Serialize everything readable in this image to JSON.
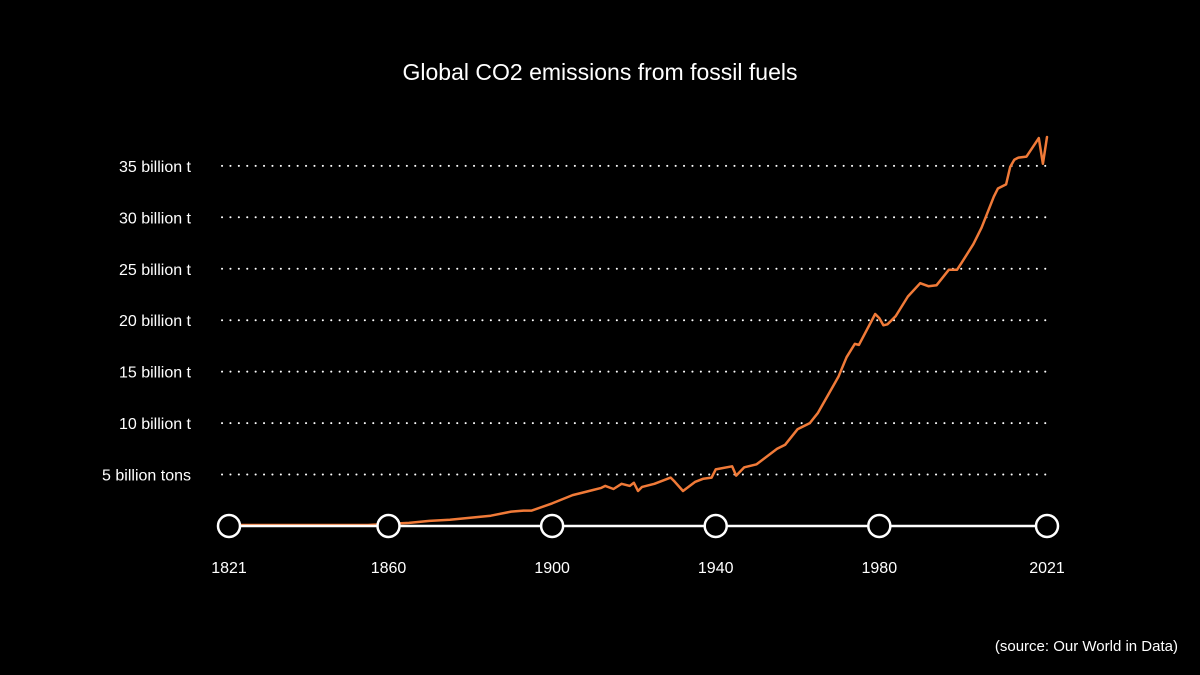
{
  "colors": {
    "background": "#000000",
    "text": "#ffffff",
    "series": "#f07a38"
  },
  "chart_data": {
    "type": "line",
    "title": "Global CO2 emissions from fossil fuels",
    "source": "(source: Our World in Data)",
    "xlabel": "",
    "ylabel": "",
    "xlim": [
      1821,
      2021
    ],
    "ylim": [
      0,
      40
    ],
    "x_ticks": [
      {
        "value": 1821,
        "label": "1821"
      },
      {
        "value": 1860,
        "label": "1860"
      },
      {
        "value": 1900,
        "label": "1900"
      },
      {
        "value": 1940,
        "label": "1940"
      },
      {
        "value": 1980,
        "label": "1980"
      },
      {
        "value": 2021,
        "label": "2021"
      }
    ],
    "y_ticks": [
      {
        "value": 5,
        "label": "5 billion tons"
      },
      {
        "value": 10,
        "label": "10 billion t"
      },
      {
        "value": 15,
        "label": "15 billion t"
      },
      {
        "value": 20,
        "label": "20 billion t"
      },
      {
        "value": 25,
        "label": "25 billion t"
      },
      {
        "value": 30,
        "label": "30 billion t"
      },
      {
        "value": 35,
        "label": "35 billion t"
      }
    ],
    "grid": true,
    "legend": "none",
    "series": [
      {
        "x": [
          1821,
          1830,
          1840,
          1850,
          1855,
          1860,
          1865,
          1870,
          1875,
          1880,
          1885,
          1890,
          1893,
          1895,
          1900,
          1905,
          1907,
          1910,
          1912,
          1913,
          1915,
          1917,
          1919,
          1920,
          1921,
          1922,
          1925,
          1929,
          1930,
          1932,
          1935,
          1937,
          1939,
          1940,
          1944,
          1945,
          1947,
          1949,
          1950,
          1955,
          1957,
          1960,
          1963,
          1965,
          1970,
          1972,
          1974,
          1975,
          1979,
          1980,
          1981,
          1982,
          1984,
          1987,
          1990,
          1992,
          1994,
          1997,
          1999,
          2000,
          2003,
          2005,
          2008,
          2009,
          2011,
          2012,
          2013,
          2014,
          2016,
          2019,
          2020,
          2021
        ],
        "values": [
          0.1,
          0.1,
          0.1,
          0.1,
          0.1,
          0.2,
          0.3,
          0.5,
          0.6,
          0.8,
          1.0,
          1.4,
          1.5,
          1.5,
          2.2,
          3.0,
          3.2,
          3.5,
          3.7,
          3.9,
          3.6,
          4.1,
          3.9,
          4.2,
          3.4,
          3.8,
          4.1,
          4.7,
          4.3,
          3.4,
          4.3,
          4.6,
          4.7,
          5.5,
          5.8,
          4.9,
          5.7,
          5.9,
          6.0,
          7.5,
          7.9,
          9.4,
          10.0,
          11.0,
          14.5,
          16.4,
          17.7,
          17.6,
          20.6,
          20.2,
          19.5,
          19.6,
          20.4,
          22.3,
          23.6,
          23.3,
          23.4,
          24.9,
          24.9,
          25.5,
          27.4,
          29.0,
          32.0,
          32.8,
          33.2,
          34.9,
          35.6,
          35.8,
          35.9,
          37.7,
          35.2,
          37.8
        ]
      }
    ]
  }
}
